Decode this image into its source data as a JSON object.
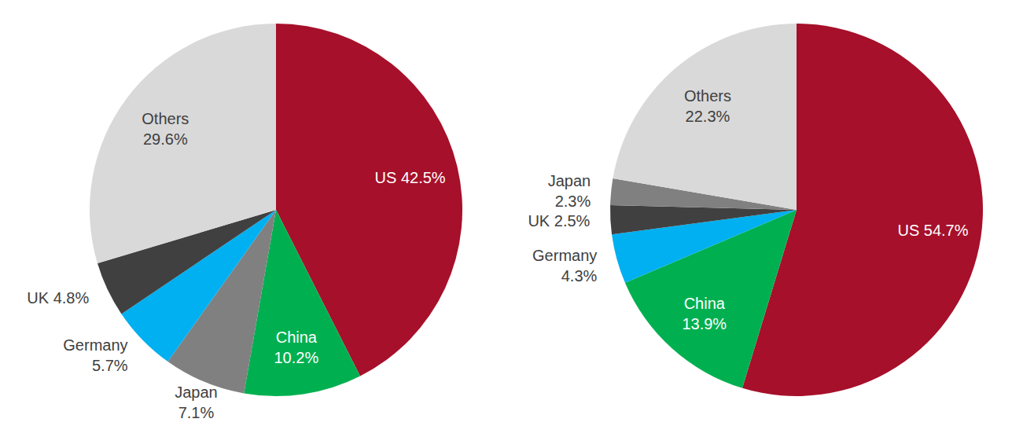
{
  "chart_data": [
    {
      "type": "pie",
      "categories": [
        "US",
        "China",
        "Japan",
        "Germany",
        "UK",
        "Others"
      ],
      "values": [
        42.5,
        10.2,
        7.1,
        5.7,
        4.8,
        29.6
      ],
      "value_labels": [
        "42.5%",
        "10.2%",
        "7.1%",
        "5.7%",
        "4.8%",
        "29.6%"
      ],
      "colors": [
        "#a6102a",
        "#00b050",
        "#808080",
        "#00b0f0",
        "#404040",
        "#d9d9d9"
      ]
    },
    {
      "type": "pie",
      "categories": [
        "US",
        "China",
        "Germany",
        "UK",
        "Japan",
        "Others"
      ],
      "values": [
        54.7,
        13.9,
        4.3,
        2.5,
        2.3,
        22.3
      ],
      "value_labels": [
        "54.7%",
        "13.9%",
        "4.3%",
        "2.5%",
        "2.3%",
        "22.3%"
      ],
      "colors": [
        "#a6102a",
        "#00b050",
        "#00b0f0",
        "#404040",
        "#808080",
        "#d9d9d9"
      ]
    }
  ]
}
